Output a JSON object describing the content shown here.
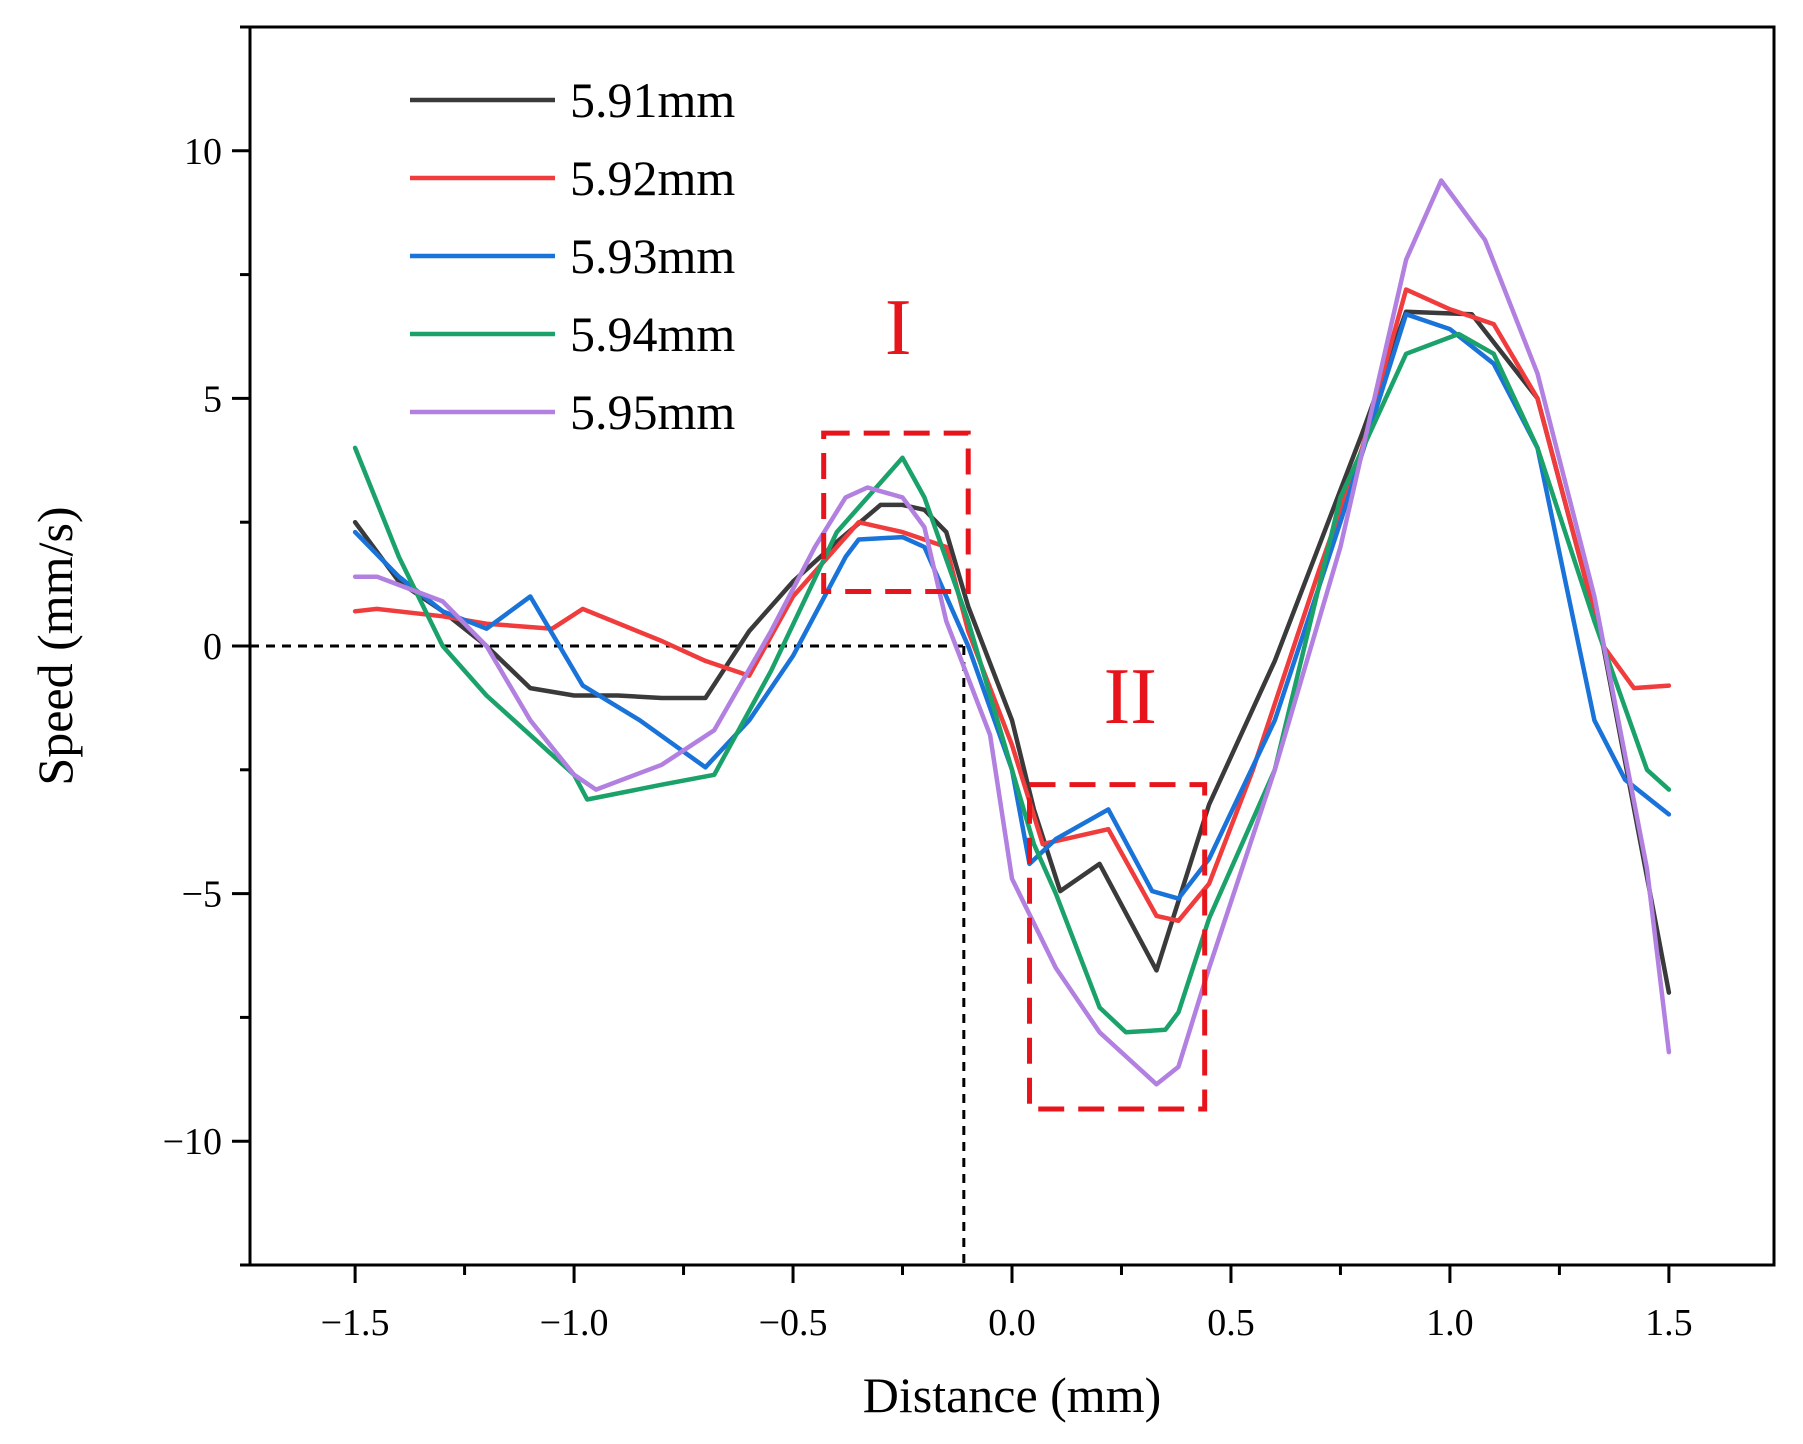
{
  "chart_data": {
    "type": "line",
    "title": "",
    "xlabel": "Distance (mm)",
    "ylabel": "Speed (mm/s)",
    "xlim": [
      -1.74,
      1.74
    ],
    "ylim": [
      -12.5,
      12.5
    ],
    "xticks": [
      -1.5,
      -1.0,
      -0.5,
      0.0,
      0.5,
      1.0,
      1.5
    ],
    "xtick_labels": [
      "−1.5",
      "−1.0",
      "−0.5",
      "0.0",
      "0.5",
      "1.0",
      "1.5"
    ],
    "yticks": [
      -10,
      -5,
      0,
      5,
      10
    ],
    "ytick_labels": [
      "−10",
      "−5",
      "0",
      "5",
      "10"
    ],
    "grid": false,
    "legend_position": "top-left",
    "series": [
      {
        "name": "5.91mm",
        "color": "#3a3a3a",
        "points": [
          [
            -1.5,
            2.5
          ],
          [
            -1.4,
            1.3
          ],
          [
            -1.3,
            0.7
          ],
          [
            -1.2,
            0.0
          ],
          [
            -1.1,
            -0.85
          ],
          [
            -1.0,
            -1.0
          ],
          [
            -0.9,
            -1.0
          ],
          [
            -0.8,
            -1.05
          ],
          [
            -0.7,
            -1.05
          ],
          [
            -0.6,
            0.3
          ],
          [
            -0.5,
            1.3
          ],
          [
            -0.4,
            2.1
          ],
          [
            -0.3,
            2.85
          ],
          [
            -0.25,
            2.85
          ],
          [
            -0.2,
            2.75
          ],
          [
            -0.15,
            2.3
          ],
          [
            -0.1,
            0.8
          ],
          [
            0.0,
            -1.5
          ],
          [
            0.05,
            -3.3
          ],
          [
            0.11,
            -4.95
          ],
          [
            0.2,
            -4.4
          ],
          [
            0.33,
            -6.55
          ],
          [
            0.45,
            -3.2
          ],
          [
            0.6,
            -0.3
          ],
          [
            0.7,
            2.0
          ],
          [
            0.8,
            4.3
          ],
          [
            0.9,
            6.75
          ],
          [
            1.05,
            6.7
          ],
          [
            1.2,
            5.0
          ],
          [
            1.35,
            0.0
          ],
          [
            1.5,
            -7.0
          ]
        ]
      },
      {
        "name": "5.92mm",
        "color": "#f03c3c",
        "points": [
          [
            -1.5,
            0.7
          ],
          [
            -1.45,
            0.75
          ],
          [
            -1.3,
            0.6
          ],
          [
            -1.2,
            0.45
          ],
          [
            -1.05,
            0.35
          ],
          [
            -0.98,
            0.75
          ],
          [
            -0.8,
            0.1
          ],
          [
            -0.7,
            -0.3
          ],
          [
            -0.6,
            -0.6
          ],
          [
            -0.5,
            1.0
          ],
          [
            -0.35,
            2.5
          ],
          [
            -0.25,
            2.3
          ],
          [
            -0.15,
            2.0
          ],
          [
            -0.1,
            0.3
          ],
          [
            0.0,
            -2.0
          ],
          [
            0.07,
            -4.0
          ],
          [
            0.22,
            -3.7
          ],
          [
            0.33,
            -5.45
          ],
          [
            0.38,
            -5.55
          ],
          [
            0.45,
            -4.8
          ],
          [
            0.55,
            -2.5
          ],
          [
            0.7,
            1.5
          ],
          [
            0.8,
            4.0
          ],
          [
            0.9,
            7.2
          ],
          [
            1.0,
            6.8
          ],
          [
            1.1,
            6.5
          ],
          [
            1.2,
            5.0
          ],
          [
            1.35,
            0.0
          ],
          [
            1.42,
            -0.85
          ],
          [
            1.5,
            -0.8
          ]
        ]
      },
      {
        "name": "5.93mm",
        "color": "#1a73d8",
        "points": [
          [
            -1.5,
            2.3
          ],
          [
            -1.4,
            1.4
          ],
          [
            -1.3,
            0.7
          ],
          [
            -1.2,
            0.35
          ],
          [
            -1.1,
            1.0
          ],
          [
            -0.98,
            -0.8
          ],
          [
            -0.85,
            -1.5
          ],
          [
            -0.7,
            -2.45
          ],
          [
            -0.6,
            -1.5
          ],
          [
            -0.5,
            -0.2
          ],
          [
            -0.38,
            1.8
          ],
          [
            -0.35,
            2.15
          ],
          [
            -0.25,
            2.2
          ],
          [
            -0.2,
            2.0
          ],
          [
            -0.1,
            0.0
          ],
          [
            0.0,
            -2.5
          ],
          [
            0.04,
            -4.4
          ],
          [
            0.1,
            -3.9
          ],
          [
            0.22,
            -3.3
          ],
          [
            0.32,
            -4.95
          ],
          [
            0.38,
            -5.1
          ],
          [
            0.45,
            -4.3
          ],
          [
            0.6,
            -1.5
          ],
          [
            0.75,
            2.5
          ],
          [
            0.9,
            6.7
          ],
          [
            1.0,
            6.4
          ],
          [
            1.1,
            5.7
          ],
          [
            1.2,
            4.0
          ],
          [
            1.33,
            -1.5
          ],
          [
            1.4,
            -2.7
          ],
          [
            1.5,
            -3.4
          ]
        ]
      },
      {
        "name": "5.94mm",
        "color": "#1aa26a",
        "points": [
          [
            -1.5,
            4.0
          ],
          [
            -1.4,
            1.8
          ],
          [
            -1.3,
            0.0
          ],
          [
            -1.2,
            -1.0
          ],
          [
            -1.1,
            -1.8
          ],
          [
            -1.0,
            -2.6
          ],
          [
            -0.97,
            -3.1
          ],
          [
            -0.8,
            -2.8
          ],
          [
            -0.68,
            -2.6
          ],
          [
            -0.55,
            -0.5
          ],
          [
            -0.4,
            2.3
          ],
          [
            -0.3,
            3.3
          ],
          [
            -0.25,
            3.8
          ],
          [
            -0.2,
            3.0
          ],
          [
            -0.1,
            0.5
          ],
          [
            0.0,
            -2.5
          ],
          [
            0.05,
            -4.0
          ],
          [
            0.1,
            -5.0
          ],
          [
            0.2,
            -7.3
          ],
          [
            0.26,
            -7.8
          ],
          [
            0.35,
            -7.75
          ],
          [
            0.38,
            -7.4
          ],
          [
            0.45,
            -5.5
          ],
          [
            0.6,
            -2.5
          ],
          [
            0.75,
            3.0
          ],
          [
            0.9,
            5.9
          ],
          [
            1.02,
            6.3
          ],
          [
            1.1,
            5.9
          ],
          [
            1.2,
            4.0
          ],
          [
            1.33,
            0.5
          ],
          [
            1.45,
            -2.5
          ],
          [
            1.5,
            -2.9
          ]
        ]
      },
      {
        "name": "5.95mm",
        "color": "#b280e0",
        "points": [
          [
            -1.5,
            1.4
          ],
          [
            -1.45,
            1.4
          ],
          [
            -1.3,
            0.9
          ],
          [
            -1.2,
            0.0
          ],
          [
            -1.1,
            -1.5
          ],
          [
            -1.0,
            -2.6
          ],
          [
            -0.95,
            -2.9
          ],
          [
            -0.8,
            -2.4
          ],
          [
            -0.68,
            -1.7
          ],
          [
            -0.55,
            0.3
          ],
          [
            -0.45,
            2.0
          ],
          [
            -0.38,
            3.0
          ],
          [
            -0.33,
            3.2
          ],
          [
            -0.25,
            3.0
          ],
          [
            -0.2,
            2.4
          ],
          [
            -0.15,
            0.5
          ],
          [
            -0.05,
            -1.8
          ],
          [
            0.0,
            -4.7
          ],
          [
            0.1,
            -6.5
          ],
          [
            0.2,
            -7.8
          ],
          [
            0.33,
            -8.85
          ],
          [
            0.38,
            -8.5
          ],
          [
            0.45,
            -6.5
          ],
          [
            0.6,
            -2.5
          ],
          [
            0.75,
            2.0
          ],
          [
            0.9,
            7.8
          ],
          [
            0.98,
            9.4
          ],
          [
            1.08,
            8.2
          ],
          [
            1.2,
            5.5
          ],
          [
            1.33,
            1.0
          ],
          [
            1.45,
            -4.5
          ],
          [
            1.5,
            -8.2
          ]
        ]
      }
    ],
    "reference_lines": [
      {
        "from": [
          -1.74,
          0
        ],
        "to": [
          -0.11,
          0
        ]
      },
      {
        "from": [
          -0.11,
          0
        ],
        "to": [
          -0.11,
          -12.5
        ]
      }
    ],
    "annotations": [
      {
        "label": "I",
        "color": "#e8141c",
        "x_range": [
          -0.43,
          -0.1
        ],
        "y_range": [
          1.1,
          4.3
        ],
        "label_at": [
          -0.26,
          5.9
        ]
      },
      {
        "label": "II",
        "color": "#e8141c",
        "x_range": [
          0.04,
          0.44
        ],
        "y_range": [
          -9.35,
          -2.8
        ],
        "label_at": [
          0.27,
          -1.55
        ]
      }
    ]
  }
}
